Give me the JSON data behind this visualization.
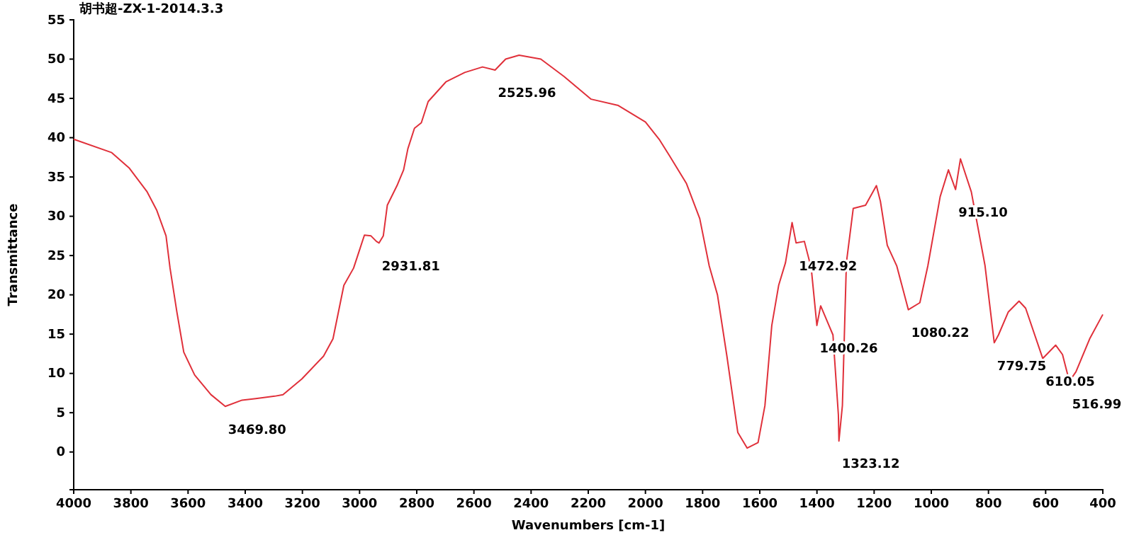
{
  "chart_data": {
    "type": "line",
    "title": "胡书超-ZX-1-2014.3.3",
    "xlabel": "Wavenumbers [cm-1]",
    "ylabel": "Transmittance",
    "xlim": [
      4000,
      400
    ],
    "ylim": [
      -4.8,
      55
    ],
    "xticks": [
      4000,
      3800,
      3600,
      3400,
      3200,
      3000,
      2800,
      2600,
      2400,
      2200,
      2000,
      1800,
      1600,
      1400,
      1200,
      1000,
      800,
      600,
      400
    ],
    "yticks": [
      0,
      5,
      10,
      15,
      20,
      25,
      30,
      35,
      40,
      45,
      50,
      55
    ],
    "grid": false,
    "marker": "none",
    "line_style": "solid",
    "series": [
      {
        "color": "#e0303a",
        "x": [
          4000,
          3867,
          3805,
          3743,
          3710,
          3677,
          3663,
          3639,
          3615,
          3577,
          3520,
          3469.8,
          3411,
          3363,
          3297,
          3268,
          3202,
          3126,
          3093,
          3055,
          3021,
          2983,
          2960,
          2941,
          2931.81,
          2917,
          2903,
          2869,
          2846,
          2831,
          2808,
          2784,
          2760,
          2698,
          2632,
          2570,
          2525.96,
          2489,
          2442,
          2366,
          2285,
          2190,
          2095,
          2000,
          1952,
          1914,
          1857,
          1810,
          1777,
          1748,
          1715,
          1677,
          1644,
          1606,
          1582,
          1558,
          1534,
          1510,
          1487,
          1472.92,
          1444,
          1420,
          1400.26,
          1387,
          1358,
          1344,
          1325,
          1323.12,
          1311,
          1297,
          1273,
          1230,
          1192,
          1178,
          1154,
          1121,
          1080.22,
          1040,
          1012,
          969,
          940,
          915.1,
          898,
          860,
          812,
          779.75,
          765,
          731,
          693,
          670,
          610.05,
          565,
          541,
          516.99,
          494,
          446,
          400
        ],
        "values": [
          39.8,
          38.1,
          36.1,
          33.1,
          30.8,
          27.5,
          23.4,
          17.8,
          12.7,
          9.8,
          7.3,
          5.8,
          6.6,
          6.8,
          7.1,
          7.3,
          9.3,
          12.2,
          14.4,
          21.2,
          23.4,
          27.6,
          27.5,
          26.8,
          26.6,
          27.5,
          31.4,
          33.9,
          35.9,
          38.6,
          41.2,
          41.9,
          44.6,
          47.1,
          48.3,
          49.0,
          48.6,
          50.0,
          50.5,
          50.0,
          47.8,
          44.9,
          44.1,
          42.0,
          39.8,
          37.6,
          34.2,
          29.7,
          23.7,
          20.0,
          12.2,
          2.5,
          0.5,
          1.2,
          5.9,
          16.1,
          21.2,
          24.1,
          29.2,
          26.6,
          26.8,
          23.4,
          16.1,
          18.6,
          16.1,
          14.9,
          4.7,
          1.4,
          5.9,
          24.1,
          31.0,
          31.4,
          33.9,
          31.9,
          26.3,
          23.7,
          18.1,
          19.0,
          23.7,
          32.5,
          35.9,
          33.4,
          37.3,
          33.1,
          23.7,
          13.9,
          14.9,
          17.8,
          19.2,
          18.3,
          11.9,
          13.6,
          12.4,
          9.0,
          10.2,
          14.4,
          17.5
        ]
      }
    ],
    "annotations": [
      {
        "text": "3469.80",
        "x": 3469.8,
        "y": 5.8
      },
      {
        "text": "2931.81",
        "x": 2931.81,
        "y": 26.6
      },
      {
        "text": "2525.96",
        "x": 2525.96,
        "y": 48.6
      },
      {
        "text": "1472.92",
        "x": 1472.92,
        "y": 26.6
      },
      {
        "text": "1400.26",
        "x": 1400.26,
        "y": 16.1
      },
      {
        "text": "1323.12",
        "x": 1323.12,
        "y": 1.4
      },
      {
        "text": "1080.22",
        "x": 1080.22,
        "y": 18.1
      },
      {
        "text": "915.10",
        "x": 915.1,
        "y": 33.4
      },
      {
        "text": "779.75",
        "x": 779.75,
        "y": 13.9
      },
      {
        "text": "610.05",
        "x": 610.05,
        "y": 11.9
      },
      {
        "text": "516.99",
        "x": 516.99,
        "y": 9.0
      }
    ]
  }
}
